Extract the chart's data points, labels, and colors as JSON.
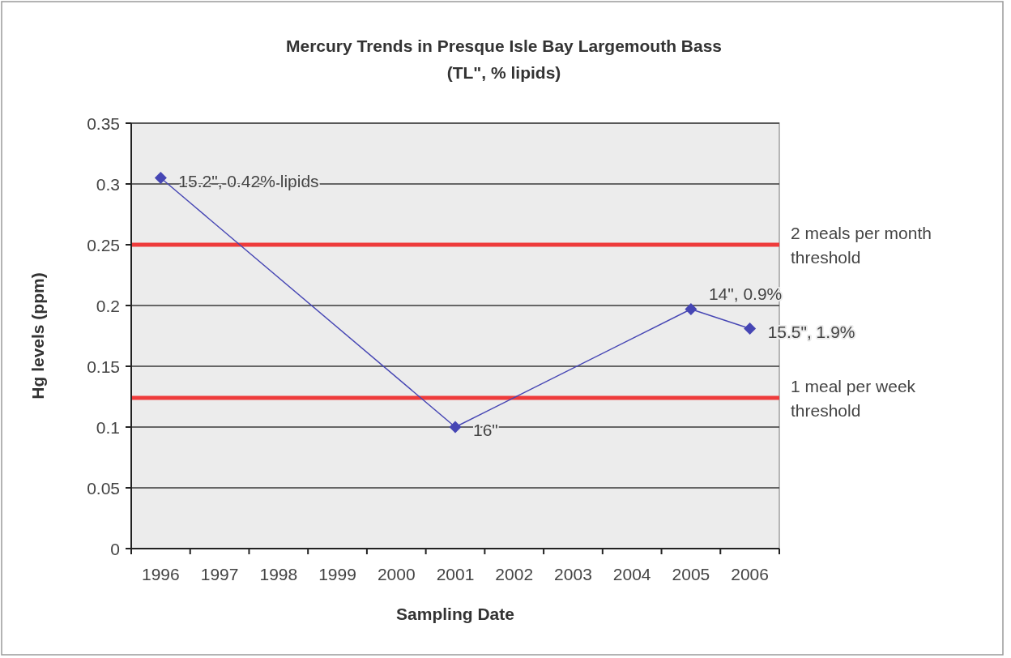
{
  "chart_data": {
    "type": "line",
    "title": "Mercury Trends in Presque Isle Bay Largemouth Bass",
    "subtitle": "(TL\", % lipids)",
    "xlabel": "Sampling Date",
    "ylabel": "Hg levels (ppm)",
    "categories": [
      "1996",
      "1997",
      "1998",
      "1999",
      "2000",
      "2001",
      "2002",
      "2003",
      "2004",
      "2005",
      "2006"
    ],
    "series": [
      {
        "values": [
          0.305,
          null,
          null,
          null,
          null,
          0.1,
          null,
          null,
          null,
          0.197,
          0.181
        ],
        "color": "#4646b4"
      }
    ],
    "ylim": [
      0,
      0.35
    ],
    "yticks": [
      0,
      0.05,
      0.1,
      0.15,
      0.2,
      0.25,
      0.3,
      0.35
    ],
    "grid": "y",
    "marker": "diamond",
    "line_style": "solid",
    "ref_lines": [
      {
        "axis": "y",
        "value": 0.25,
        "label": "2 meals per month threshold",
        "color": "#ee3b3b"
      },
      {
        "axis": "y",
        "value": 0.124,
        "label": "1 meal per week threshold",
        "color": "#ee3b3b"
      }
    ],
    "annotations": [
      {
        "text": "15.2\", 0.42% lipids",
        "x": "1996",
        "y": 0.305
      },
      {
        "text": "16\"",
        "x": "2001",
        "y": 0.1
      },
      {
        "text": "14\", 0.9%",
        "x": "2005",
        "y": 0.197
      },
      {
        "text": "15.5\", 1.9%",
        "x": "2006",
        "y": 0.181
      }
    ]
  }
}
